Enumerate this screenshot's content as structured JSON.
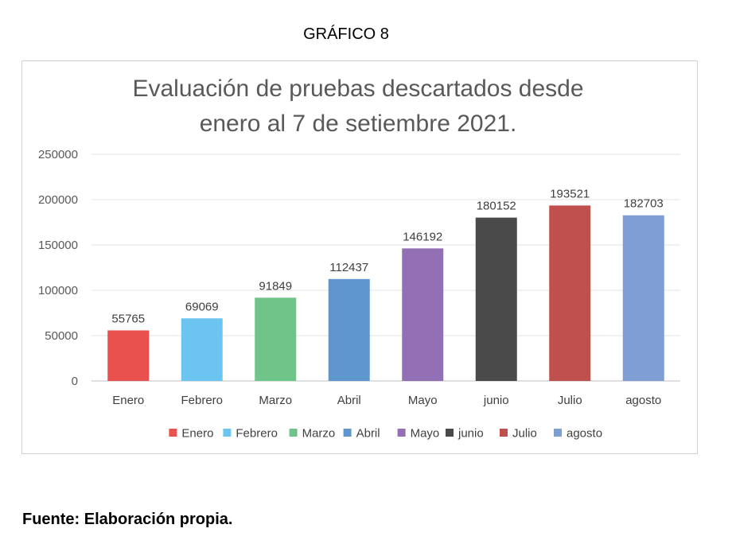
{
  "heading": "GRÁFICO 8",
  "footnote": "Fuente: Elaboración propia.",
  "chart_data": {
    "type": "bar",
    "title": "Evaluación  de pruebas descartados desde\nenero al 7 de setiembre 2021.",
    "categories": [
      "Enero",
      "Febrero",
      "Marzo",
      "Abril",
      "Mayo",
      "junio",
      "Julio",
      "agosto"
    ],
    "values": [
      55765,
      69069,
      91849,
      112437,
      146192,
      180152,
      193521,
      182703
    ],
    "colors": [
      "#e8514e",
      "#6cc5f0",
      "#6ec489",
      "#5d97cd",
      "#9370b5",
      "#4a4a4a",
      "#c0504d",
      "#7f9ed4"
    ],
    "ylim": [
      0,
      250000
    ],
    "yticks": [
      0,
      50000,
      100000,
      150000,
      200000,
      250000
    ],
    "grid": true,
    "legend": "bottom",
    "legend_entries": [
      "Enero",
      "Febrero",
      "Marzo",
      "Abril",
      "Mayo",
      "junio",
      "Julio",
      "agosto"
    ],
    "data_labels": true
  }
}
